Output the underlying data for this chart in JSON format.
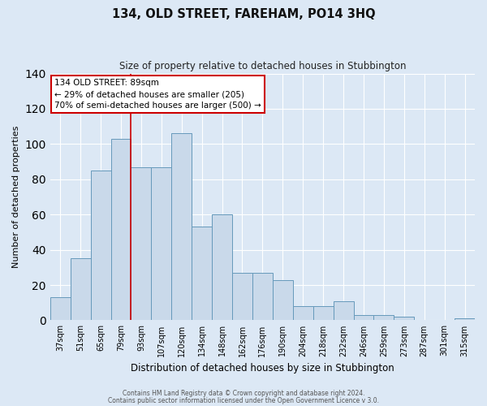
{
  "title": "134, OLD STREET, FAREHAM, PO14 3HQ",
  "subtitle": "Size of property relative to detached houses in Stubbington",
  "xlabel": "Distribution of detached houses by size in Stubbington",
  "ylabel": "Number of detached properties",
  "bar_labels": [
    "37sqm",
    "51sqm",
    "65sqm",
    "79sqm",
    "93sqm",
    "107sqm",
    "120sqm",
    "134sqm",
    "148sqm",
    "162sqm",
    "176sqm",
    "190sqm",
    "204sqm",
    "218sqm",
    "232sqm",
    "246sqm",
    "259sqm",
    "273sqm",
    "287sqm",
    "301sqm",
    "315sqm"
  ],
  "bar_values": [
    13,
    35,
    85,
    103,
    87,
    87,
    106,
    53,
    60,
    27,
    27,
    23,
    8,
    8,
    11,
    3,
    3,
    2,
    0,
    0,
    1
  ],
  "bar_color": "#c9d9ea",
  "bar_edge_color": "#6699bb",
  "ylim": [
    0,
    140
  ],
  "yticks": [
    0,
    20,
    40,
    60,
    80,
    100,
    120,
    140
  ],
  "red_line_x": 3.5,
  "annotation_title": "134 OLD STREET: 89sqm",
  "annotation_line1": "← 29% of detached houses are smaller (205)",
  "annotation_line2": "70% of semi-detached houses are larger (500) →",
  "footer1": "Contains HM Land Registry data © Crown copyright and database right 2024.",
  "footer2": "Contains public sector information licensed under the Open Government Licence v 3.0.",
  "background_color": "#dce8f5",
  "plot_background": "#dce8f5",
  "grid_color": "#ffffff"
}
